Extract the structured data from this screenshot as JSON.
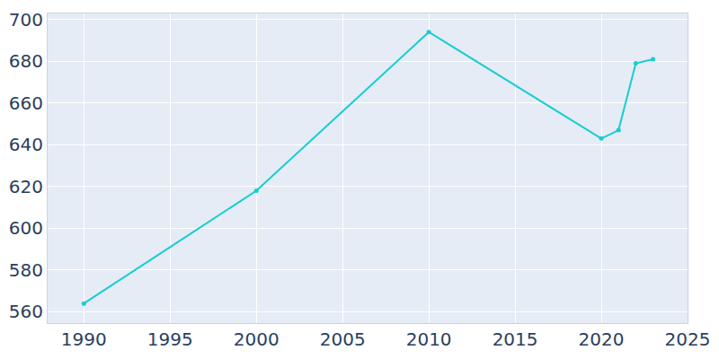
{
  "chart_data": {
    "type": "line",
    "x": [
      1990,
      2000,
      2010,
      2020,
      2021,
      2022,
      2023
    ],
    "values": [
      564,
      618,
      694,
      643,
      647,
      679,
      681
    ],
    "color": "#17cdd0",
    "marker": "circle",
    "xlim": [
      1987.9,
      2025
    ],
    "xticks": [
      1990,
      1995,
      2000,
      2005,
      2010,
      2015,
      2020,
      2025
    ],
    "ylim": [
      554.6,
      702.9
    ],
    "yticks": [
      560,
      580,
      600,
      620,
      640,
      660,
      680,
      700
    ],
    "grid": true
  }
}
